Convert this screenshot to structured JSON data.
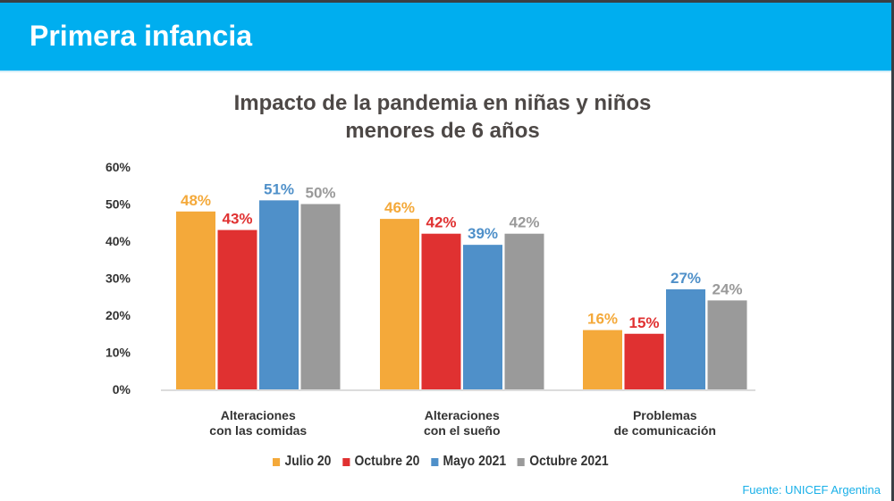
{
  "header": {
    "title": "Primera infancia"
  },
  "source": "Fuente: UNICEF Argentina",
  "chart_data": {
    "type": "bar",
    "title": [
      "Impacto de la pandemia en niñas y niños",
      "menores de 6 años"
    ],
    "categories": [
      [
        "Alteraciones",
        "con las comidas"
      ],
      [
        "Alteraciones",
        "con el sueño"
      ],
      [
        "Problemas",
        "de comunicación"
      ]
    ],
    "series": [
      {
        "name": "Julio 20",
        "color": "#f4a93a",
        "values": [
          48,
          46,
          16
        ]
      },
      {
        "name": "Octubre 20",
        "color": "#e03131",
        "values": [
          43,
          42,
          15
        ]
      },
      {
        "name": "Mayo 2021",
        "color": "#4f90c9",
        "values": [
          51,
          39,
          27
        ]
      },
      {
        "name": "Octubre 2021",
        "color": "#9a9a9a",
        "values": [
          50,
          42,
          24
        ]
      }
    ],
    "yticks": [
      "0%",
      "10%",
      "20%",
      "30%",
      "40%",
      "50%",
      "60%"
    ],
    "ylim": [
      0,
      60
    ],
    "legend": "bottom",
    "grid": false
  }
}
